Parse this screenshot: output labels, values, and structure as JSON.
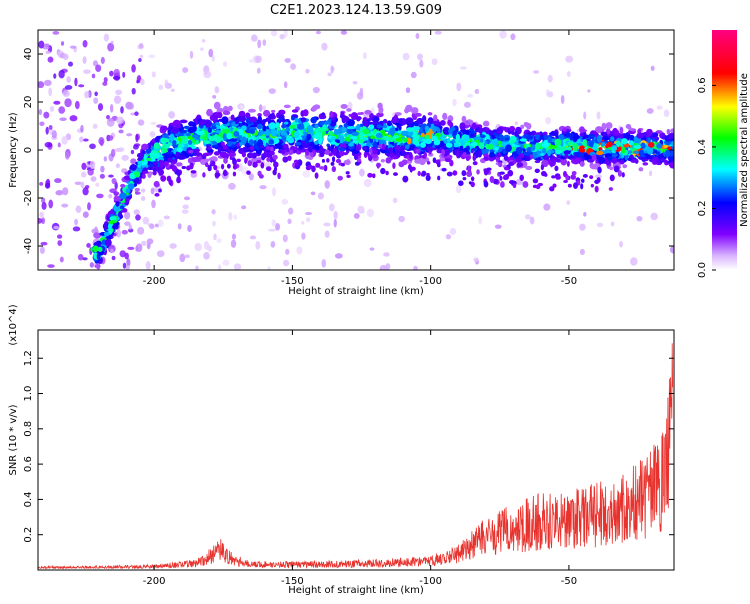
{
  "title": "C2E1.2023.124.13.59.G09",
  "chart_data": [
    {
      "type": "heatmap",
      "xlabel": "Height of straight line (km)",
      "ylabel": "Frequency (Hz)",
      "xlim": [
        -242,
        -12
      ],
      "ylim": [
        -50,
        50
      ],
      "x_ticks": [
        -200,
        -150,
        -100,
        -50
      ],
      "y_ticks": [
        -40,
        -20,
        0,
        20,
        40
      ],
      "colorbar": {
        "label": "Normalized spectral amplitude",
        "ticks": [
          0.0,
          0.2,
          0.4,
          0.6
        ],
        "range": [
          0,
          0.78
        ],
        "colors": [
          "#ffffff",
          "#7f00ff",
          "#0000ff",
          "#00ffff",
          "#00ff00",
          "#ffff00",
          "#ff0000",
          "#ff0080"
        ]
      },
      "ridge": {
        "x": [
          -220,
          -214,
          -208,
          -203,
          -198,
          -190,
          -180,
          -170,
          -160,
          -150,
          -140,
          -130,
          -120,
          -110,
          -100,
          -90,
          -80,
          -70,
          -60,
          -50,
          -40,
          -30,
          -20,
          -12
        ],
        "y": [
          -42,
          -28,
          -12,
          -4,
          0,
          4,
          6,
          7,
          6,
          8,
          7,
          6,
          6,
          5,
          6,
          4,
          3,
          2,
          1,
          2,
          1,
          1,
          1,
          0
        ]
      }
    },
    {
      "type": "line",
      "xlabel": "Height of straight line (km)",
      "ylabel": "SNR (10 * v/v)",
      "yscale_label": "(x10^4)",
      "xlim": [
        -242,
        -12
      ],
      "ylim": [
        0,
        1.36
      ],
      "x_ticks": [
        -200,
        -150,
        -100,
        -50
      ],
      "y_ticks": [
        0.2,
        0.4,
        0.6,
        0.8,
        1.0,
        1.2
      ],
      "envelope": {
        "x": [
          -242,
          -200,
          -185,
          -180,
          -176,
          -172,
          -165,
          -140,
          -120,
          -100,
          -90,
          -80,
          -70,
          -60,
          -50,
          -40,
          -30,
          -20,
          -15,
          -13
        ],
        "y": [
          0.02,
          0.03,
          0.06,
          0.12,
          0.18,
          0.1,
          0.05,
          0.05,
          0.06,
          0.08,
          0.15,
          0.3,
          0.38,
          0.45,
          0.45,
          0.5,
          0.55,
          0.7,
          0.8,
          1.36
        ]
      },
      "color": "#e8322d"
    }
  ]
}
